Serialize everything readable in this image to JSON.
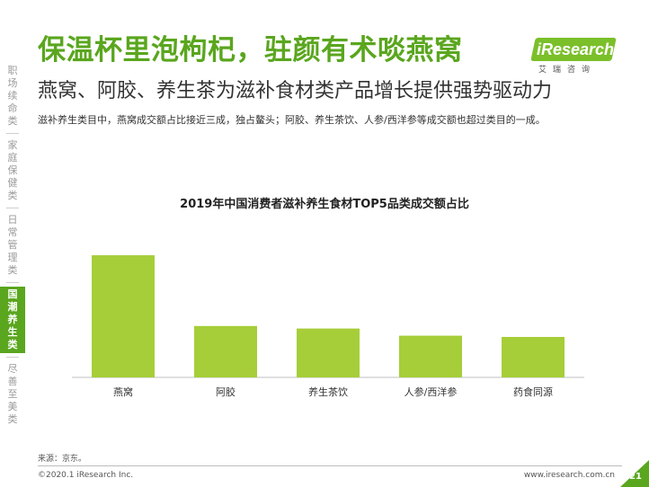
{
  "nav": {
    "items": [
      {
        "label": "职场续命类",
        "active": false
      },
      {
        "label": "家庭保健类",
        "active": false
      },
      {
        "label": "日常管理类",
        "active": false
      },
      {
        "label": "国潮养生类",
        "active": true
      },
      {
        "label": "尽善至美类",
        "active": false
      }
    ]
  },
  "header": {
    "title": "保温杯里泡枸杞，驻颜有术啖燕窝",
    "subtitle": "燕窝、阿胶、养生茶为滋补食材类产品增长提供强势驱动力",
    "description": "滋补养生类目中，燕窝成交额占比接近三成，独占鳌头；阿胶、养生茶饮、人参/西洋参等成交额也超过类目的一成。"
  },
  "logo": {
    "brand": "iResearch",
    "cn": "艾瑞咨询"
  },
  "chart_data": {
    "type": "bar",
    "title": "2019年中国消费者滋补养生食材TOP5品类成交额占比",
    "categories": [
      "燕窝",
      "阿胶",
      "养生茶饮",
      "人参/西洋参",
      "药食同源"
    ],
    "values": [
      29,
      12.2,
      11.6,
      9.9,
      9.6
    ],
    "ylim": [
      0,
      32
    ],
    "color": "#a6ce39",
    "grid": false
  },
  "footer": {
    "source": "来源：京东。",
    "copyright": "©2020.1 iResearch Inc.",
    "website": "www.iresearch.com.cn",
    "page": "21"
  },
  "colors": {
    "accent": "#5aa61e",
    "bar": "#a6ce39"
  }
}
